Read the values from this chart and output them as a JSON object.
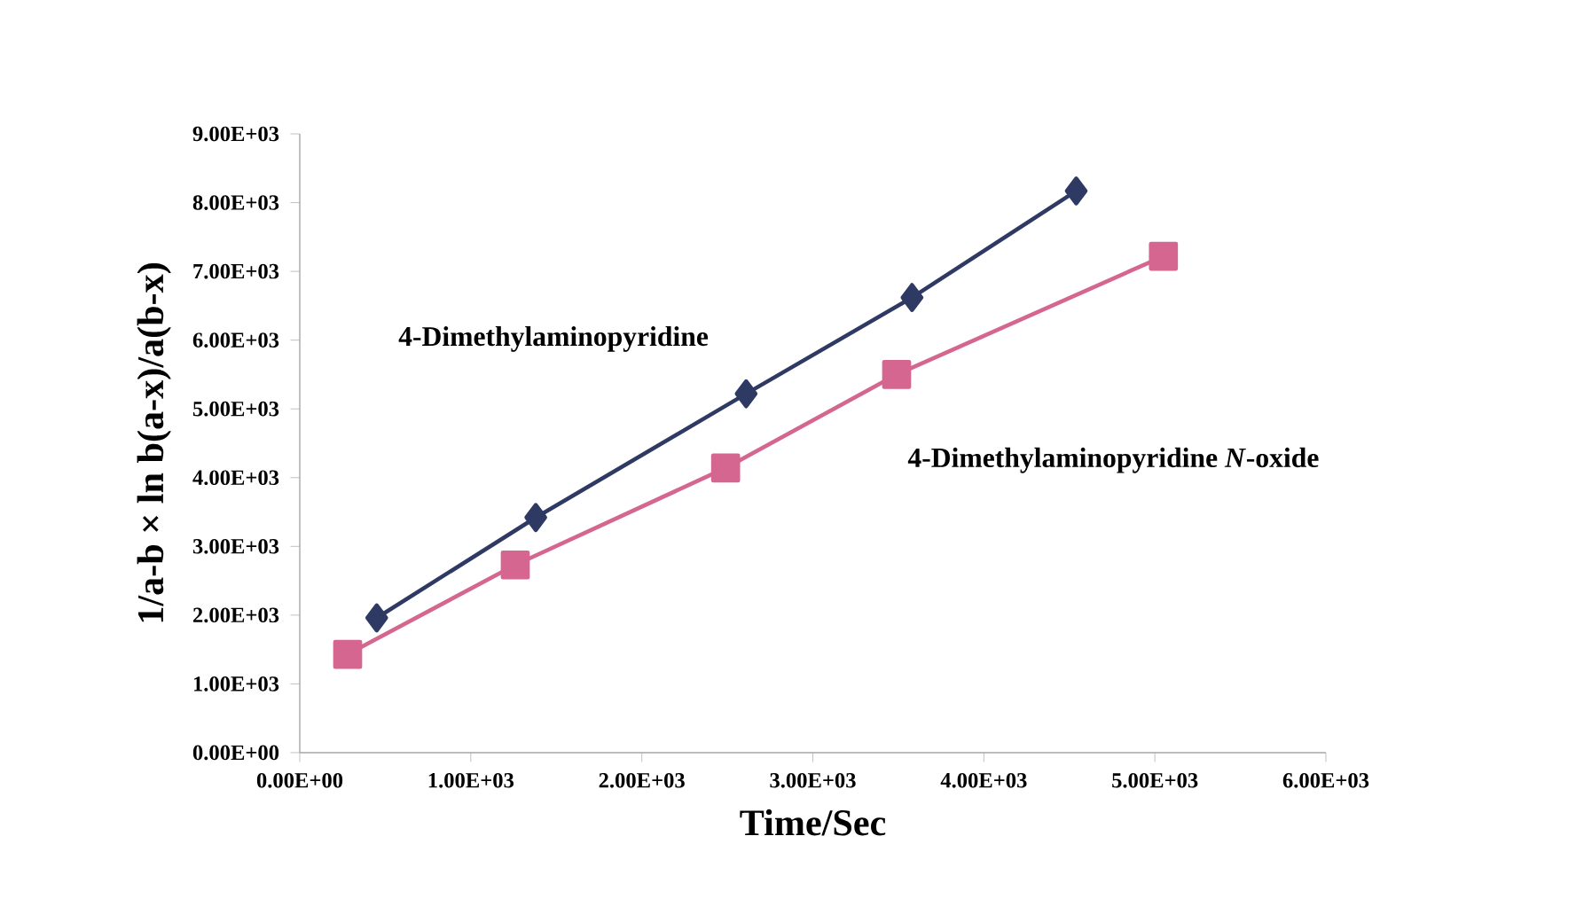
{
  "chart_data": {
    "type": "line",
    "xlabel": "Time/Sec",
    "ylabel": "1/a-b × ln b(a-x)/a(b-x)",
    "xlim": [
      0,
      6000
    ],
    "ylim": [
      0,
      9000
    ],
    "xticks": [
      {
        "value": 0,
        "label": "0.00E+00"
      },
      {
        "value": 1000,
        "label": "1.00E+03"
      },
      {
        "value": 2000,
        "label": "2.00E+03"
      },
      {
        "value": 3000,
        "label": "3.00E+03"
      },
      {
        "value": 4000,
        "label": "4.00E+03"
      },
      {
        "value": 5000,
        "label": "5.00E+03"
      },
      {
        "value": 6000,
        "label": "6.00E+03"
      }
    ],
    "yticks": [
      {
        "value": 0,
        "label": "0.00E+00"
      },
      {
        "value": 1000,
        "label": "1.00E+03"
      },
      {
        "value": 2000,
        "label": "2.00E+03"
      },
      {
        "value": 3000,
        "label": "3.00E+03"
      },
      {
        "value": 4000,
        "label": "4.00E+03"
      },
      {
        "value": 5000,
        "label": "5.00E+03"
      },
      {
        "value": 6000,
        "label": "6.00E+03"
      },
      {
        "value": 7000,
        "label": "7.00E+03"
      },
      {
        "value": 8000,
        "label": "8.00E+03"
      },
      {
        "value": 9000,
        "label": "9.00E+03"
      }
    ],
    "grid": false,
    "legend": false,
    "line_style": "solid",
    "series": [
      {
        "name": "4-Dimethylaminopyridine",
        "color": "#2e3a63",
        "marker": "diamond",
        "x": [
          450,
          1380,
          2610,
          3580,
          4540
        ],
        "values": [
          1960,
          3420,
          5220,
          6620,
          8170
        ]
      },
      {
        "name": "4-Dimethylaminopyridine *N*-oxide",
        "color": "#d4668f",
        "marker": "square",
        "x": [
          280,
          1260,
          2490,
          3490,
          5050
        ],
        "values": [
          1430,
          2730,
          4140,
          5500,
          7220
        ]
      }
    ]
  }
}
